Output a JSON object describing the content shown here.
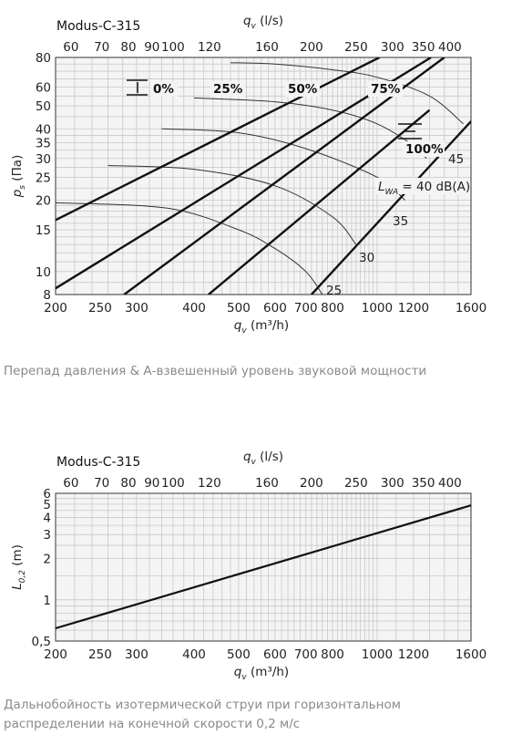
{
  "captions": {
    "chart1": "Перепад давления & А-взвешенный уровень звуковой мощности",
    "chart2_line1": "Дальнобойность изотермической струи при горизонтальном",
    "chart2_line2": "распределении на конечной скорости 0,2 м/с"
  },
  "chart_data": [
    {
      "type": "line",
      "title": "Modus-C-315",
      "xlabel": "q",
      "xlabel_sub": "v",
      "xlabel_unit": " (m³/h)",
      "x2label": "q",
      "x2label_sub": "v",
      "x2label_unit": " (l/s)",
      "ylabel": "p",
      "ylabel_sub": "s",
      "ylabel_unit": " (Па)",
      "x_scale": "log",
      "y_scale": "log",
      "xlim": [
        200,
        1600
      ],
      "ylim": [
        8,
        80
      ],
      "grid": true,
      "x_ticks": [
        200,
        250,
        300,
        400,
        500,
        600,
        700,
        800,
        1000,
        1200,
        1600
      ],
      "x_tick_labels": [
        "200",
        "250",
        "300",
        "400",
        "500",
        "600",
        "700",
        "800",
        "1000",
        "1200",
        "1600"
      ],
      "x2_ticks": [
        60,
        70,
        80,
        90,
        100,
        120,
        160,
        200,
        250,
        300,
        350,
        400
      ],
      "x2_tick_labels": [
        "60",
        "70",
        "80",
        "90",
        "100",
        "120",
        "160",
        "200",
        "250",
        "300",
        "350",
        "400"
      ],
      "y_ticks": [
        8,
        10,
        15,
        20,
        25,
        30,
        35,
        40,
        50,
        60,
        80
      ],
      "y_tick_labels": [
        "8",
        "10",
        "15",
        "20",
        "25",
        "30",
        "35",
        "40",
        "50",
        "60",
        "80"
      ],
      "opening_series": [
        {
          "name": "0%",
          "x": [
            200,
            1012
          ],
          "y": [
            16.5,
            80
          ]
        },
        {
          "name": "25%",
          "x": [
            200,
            1310
          ],
          "y": [
            8.5,
            80
          ]
        },
        {
          "name": "50%",
          "x": [
            282,
            1400
          ],
          "y": [
            8,
            80
          ]
        },
        {
          "name": "75%",
          "x": [
            430,
            1300
          ],
          "y": [
            8,
            48
          ]
        },
        {
          "name": "100%",
          "x": [
            720,
            1600
          ],
          "y": [
            8,
            43
          ]
        }
      ],
      "sound_series": [
        {
          "name": "25",
          "x": [
            200,
            350,
            500,
            600,
            700,
            760
          ],
          "y": [
            19.5,
            18.5,
            15,
            12.5,
            10,
            8
          ]
        },
        {
          "name": "30",
          "x": [
            260,
            400,
            600,
            800,
            900
          ],
          "y": [
            28,
            27,
            23,
            17,
            13
          ]
        },
        {
          "name": "35",
          "x": [
            340,
            500,
            700,
            1000,
            1150
          ],
          "y": [
            40,
            38.5,
            33,
            25,
            20
          ]
        },
        {
          "name": "40",
          "x": [
            400,
            600,
            800,
            1000,
            1200,
            1280
          ],
          "y": [
            54,
            52,
            48,
            42,
            34,
            30
          ]
        },
        {
          "name": "45",
          "x": [
            480,
            600,
            800,
            1000,
            1300,
            1540
          ],
          "y": [
            76,
            75,
            71,
            66,
            55,
            42
          ]
        }
      ],
      "annotations": {
        "open_0": "0%",
        "open_25": "25%",
        "open_50": "50%",
        "open_75": "75%",
        "open_100": "100%",
        "lwa_L": "L",
        "lwa_sub": "WA",
        "lwa_rest": " = 40 dB(A)",
        "s25": "25",
        "s30": "30",
        "s35": "35",
        "s45": "45"
      }
    },
    {
      "type": "line",
      "title": "Modus-C-315",
      "xlabel": "q",
      "xlabel_sub": "v",
      "xlabel_unit": " (m³/h)",
      "x2label": "q",
      "x2label_sub": "v",
      "x2label_unit": " (l/s)",
      "ylabel": "L",
      "ylabel_sub": "0,2",
      "ylabel_unit": " (m)",
      "x_scale": "log",
      "y_scale": "log",
      "xlim": [
        200,
        1600
      ],
      "ylim": [
        0.5,
        6
      ],
      "grid": true,
      "x_ticks": [
        200,
        250,
        300,
        400,
        500,
        600,
        700,
        800,
        1000,
        1200,
        1600
      ],
      "x_tick_labels": [
        "200",
        "250",
        "300",
        "400",
        "500",
        "600",
        "700",
        "800",
        "1000",
        "1200",
        "1600"
      ],
      "x2_ticks": [
        60,
        70,
        80,
        90,
        100,
        120,
        160,
        200,
        250,
        300,
        350,
        400
      ],
      "x2_tick_labels": [
        "60",
        "70",
        "80",
        "90",
        "100",
        "120",
        "160",
        "200",
        "250",
        "300",
        "350",
        "400"
      ],
      "y_ticks": [
        0.5,
        1,
        2,
        3,
        4,
        5,
        6
      ],
      "y_tick_labels": [
        "0,5",
        "1",
        "2",
        "3",
        "4",
        "5",
        "6"
      ],
      "series": [
        {
          "x": [
            200,
            1600
          ],
          "y": [
            0.62,
            4.9
          ]
        }
      ]
    }
  ]
}
